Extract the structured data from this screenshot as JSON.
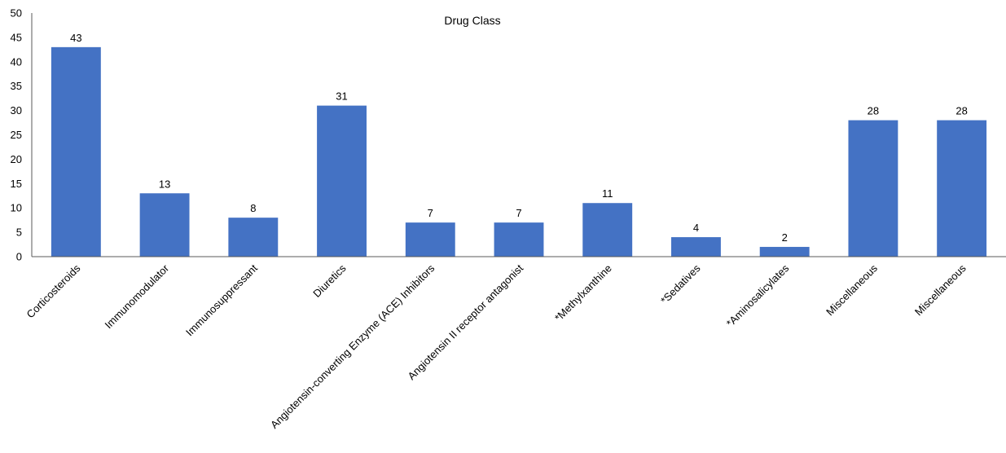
{
  "chart_data": {
    "type": "bar",
    "title": "Drug Class",
    "xlabel": "",
    "ylabel": "",
    "categories": [
      "Corticosteroids",
      "Immunomodulator",
      "Immunosuppressant",
      "Diuretics",
      "Angiotensin-converting Enzyme (ACE) Inhibitors",
      "Angiotensin II receptor antagonist",
      "*Methylxanthine",
      "*Sedatives",
      "*Aminosalicylates",
      "Miscellaneous",
      "Miscellaneous"
    ],
    "values": [
      43,
      13,
      8,
      31,
      7,
      7,
      11,
      4,
      2,
      28,
      28
    ],
    "ylim": [
      0,
      50
    ],
    "yticks": [
      0,
      5,
      10,
      15,
      20,
      25,
      30,
      35,
      40,
      45,
      50
    ],
    "grid": false,
    "legend": "none",
    "colors": {
      "bar": "#4472C4"
    }
  }
}
